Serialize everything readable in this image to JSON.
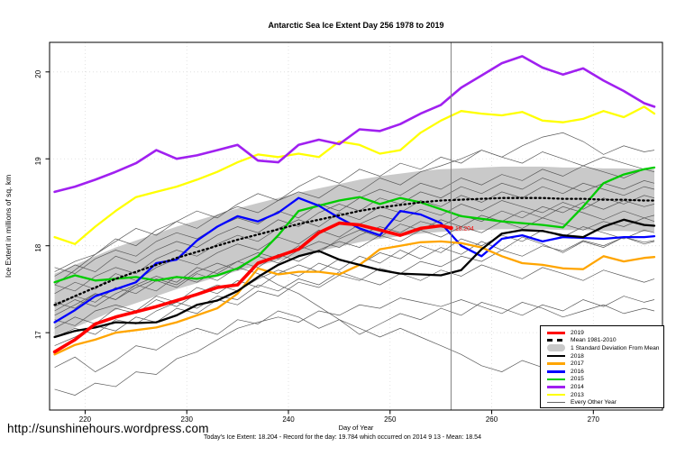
{
  "page": {
    "url_text": "http://sunshinehours.wordpress.com",
    "footer": "Today's Ice Extent: 18.204  - Record for the day: 19.784 which occurred on 2014 9 13  - Mean: 18.54"
  },
  "legend": {
    "items": [
      {
        "label": "2019",
        "color": "#FF0000",
        "style": "thick"
      },
      {
        "label": "Mean 1981-2010",
        "color": "#000000",
        "style": "dashed"
      },
      {
        "label": "1 Standard Deviation From Mean",
        "color": "#C9C9C9",
        "style": "band"
      },
      {
        "label": "2018",
        "color": "#000000",
        "style": "medium"
      },
      {
        "label": "2017",
        "color": "#FFA500",
        "style": "medium"
      },
      {
        "label": "2016",
        "color": "#0000FF",
        "style": "medium"
      },
      {
        "label": "2015",
        "color": "#00CC00",
        "style": "medium"
      },
      {
        "label": "2014",
        "color": "#A020F0",
        "style": "medium"
      },
      {
        "label": "2013",
        "color": "#FFFF00",
        "style": "medium"
      },
      {
        "label": "Every Other Year",
        "color": "#666666",
        "style": "thin"
      }
    ]
  },
  "chart_data": {
    "type": "line",
    "title": "Antarctic Sea Ice Extent Day 256 1978 to 2019",
    "xlabel": "Day of Year",
    "ylabel": "Ice Extent in millions of sq. km",
    "x_ticks": [
      220,
      230,
      240,
      250,
      260,
      270
    ],
    "y_ticks": [
      17,
      18,
      19,
      20
    ],
    "x_range": [
      216.5,
      276.8
    ],
    "y_range": [
      16.11,
      20.34
    ],
    "grid": "dotted",
    "legend_position": "bottom-right",
    "colors": {
      "grid": "#DCDCDC",
      "axis": "#000000"
    },
    "annotation": {
      "day": 256,
      "value": 18.204,
      "label": "18.204",
      "color": "#FF0000",
      "vline_color": "#808080"
    },
    "days": [
      217,
      219,
      221,
      223,
      225,
      227,
      229,
      231,
      233,
      235,
      237,
      239,
      241,
      243,
      245,
      247,
      249,
      251,
      253,
      255,
      257,
      259,
      261,
      263,
      265,
      267,
      269,
      271,
      273,
      275,
      276
    ],
    "band": {
      "name": "1 Standard Deviation From Mean",
      "color": "#C9C9C9",
      "upper": [
        17.68,
        17.78,
        17.88,
        17.98,
        18.06,
        18.14,
        18.22,
        18.29,
        18.36,
        18.43,
        18.49,
        18.55,
        18.61,
        18.66,
        18.71,
        18.76,
        18.8,
        18.83,
        18.86,
        18.88,
        18.89,
        18.9,
        18.91,
        18.91,
        18.91,
        18.9,
        18.9,
        18.89,
        18.89,
        18.88,
        18.88
      ],
      "lower": [
        16.96,
        17.06,
        17.16,
        17.26,
        17.34,
        17.42,
        17.5,
        17.57,
        17.64,
        17.71,
        17.77,
        17.83,
        17.89,
        17.94,
        17.99,
        18.04,
        18.08,
        18.11,
        18.14,
        18.16,
        18.17,
        18.18,
        18.19,
        18.19,
        18.19,
        18.18,
        18.18,
        18.17,
        18.17,
        18.16,
        18.16
      ]
    },
    "other_years": {
      "name": "Every Other Year",
      "color": "#595959",
      "width": 0.7,
      "series": [
        [
          16.35,
          16.28,
          16.42,
          16.38,
          16.55,
          16.52,
          16.7,
          16.78,
          16.92,
          17.05,
          17.12,
          17.18,
          17.12,
          17.25,
          17.2,
          17.32,
          17.28,
          17.4,
          17.35,
          17.3,
          17.38,
          17.3,
          17.22,
          17.35,
          17.28,
          17.18,
          17.25,
          17.32,
          17.22,
          17.28,
          17.25
        ],
        [
          16.6,
          16.72,
          16.55,
          16.68,
          16.85,
          16.8,
          16.95,
          17.05,
          16.98,
          17.15,
          17.1,
          17.25,
          17.18,
          17.05,
          17.15,
          16.98,
          17.1,
          17.22,
          17.15,
          17.28,
          17.2,
          17.35,
          17.28,
          17.2,
          17.32,
          17.25,
          17.38,
          17.3,
          17.42,
          17.35,
          17.38
        ],
        [
          16.95,
          17.05,
          16.98,
          17.15,
          17.1,
          17.25,
          17.35,
          17.28,
          17.42,
          17.38,
          17.55,
          17.48,
          17.62,
          17.55,
          17.7,
          17.62,
          17.55,
          17.68,
          17.6,
          17.72,
          17.65,
          17.78,
          17.7,
          17.62,
          17.75,
          17.68,
          17.6,
          17.72,
          17.65,
          17.58,
          17.62
        ],
        [
          17.05,
          17.18,
          17.1,
          17.28,
          17.22,
          17.38,
          17.3,
          17.45,
          17.55,
          17.48,
          17.62,
          17.72,
          17.65,
          17.8,
          17.72,
          17.88,
          17.8,
          17.95,
          17.85,
          17.98,
          17.9,
          18.05,
          17.95,
          18.1,
          18.02,
          17.92,
          18.05,
          17.98,
          18.1,
          18.02,
          18.05
        ],
        [
          17.15,
          17.08,
          17.25,
          17.32,
          17.25,
          17.42,
          17.35,
          17.52,
          17.45,
          17.6,
          17.52,
          17.68,
          17.78,
          17.7,
          17.85,
          17.78,
          17.92,
          17.85,
          18.0,
          17.92,
          18.08,
          18.0,
          18.12,
          18.05,
          18.18,
          18.1,
          18.22,
          18.15,
          18.08,
          18.18,
          18.15
        ],
        [
          17.25,
          17.38,
          17.3,
          17.45,
          17.55,
          17.48,
          17.65,
          17.58,
          17.72,
          17.82,
          17.75,
          17.9,
          17.82,
          17.95,
          18.05,
          17.98,
          18.12,
          18.05,
          18.18,
          18.1,
          18.22,
          18.15,
          18.28,
          18.2,
          18.32,
          18.25,
          18.18,
          18.28,
          18.22,
          18.32,
          18.28
        ],
        [
          17.35,
          17.28,
          17.45,
          17.38,
          17.55,
          17.65,
          17.58,
          17.75,
          17.68,
          17.82,
          17.92,
          17.85,
          18.0,
          17.92,
          18.08,
          18.18,
          18.1,
          18.25,
          18.18,
          18.3,
          18.22,
          18.35,
          18.28,
          18.4,
          18.32,
          18.45,
          18.38,
          18.3,
          18.4,
          18.32,
          18.35
        ],
        [
          17.45,
          17.58,
          17.5,
          17.68,
          17.6,
          17.75,
          17.85,
          17.78,
          17.92,
          18.02,
          17.95,
          18.1,
          18.02,
          18.18,
          18.1,
          18.25,
          18.35,
          18.28,
          18.42,
          18.35,
          18.48,
          18.4,
          18.52,
          18.45,
          18.38,
          18.5,
          18.42,
          18.55,
          18.48,
          18.58,
          18.55
        ],
        [
          17.55,
          17.48,
          17.65,
          17.75,
          17.68,
          17.85,
          17.95,
          17.88,
          18.02,
          18.12,
          18.05,
          18.2,
          18.3,
          18.22,
          18.38,
          18.3,
          18.45,
          18.38,
          18.52,
          18.45,
          18.58,
          18.5,
          18.62,
          18.55,
          18.68,
          18.6,
          18.72,
          18.65,
          18.58,
          18.68,
          18.65
        ],
        [
          17.65,
          17.78,
          17.7,
          17.88,
          17.8,
          17.95,
          18.05,
          17.98,
          18.12,
          18.22,
          18.15,
          18.3,
          18.22,
          18.38,
          18.48,
          18.4,
          18.55,
          18.48,
          18.62,
          18.55,
          18.68,
          18.6,
          18.72,
          18.65,
          18.78,
          18.7,
          18.62,
          18.72,
          18.65,
          18.75,
          18.72
        ],
        [
          17.75,
          17.68,
          17.85,
          17.95,
          17.88,
          18.05,
          18.15,
          18.08,
          18.22,
          18.32,
          18.25,
          18.4,
          18.32,
          18.48,
          18.4,
          18.55,
          18.65,
          18.58,
          18.72,
          18.65,
          18.78,
          18.7,
          18.82,
          18.75,
          18.88,
          18.8,
          18.92,
          18.85,
          18.78,
          18.88,
          18.85
        ],
        [
          17.7,
          17.82,
          17.9,
          18.08,
          18.0,
          18.18,
          18.28,
          18.2,
          18.35,
          18.45,
          18.38,
          18.52,
          18.62,
          18.55,
          18.7,
          18.62,
          18.78,
          18.7,
          18.85,
          18.92,
          19.0,
          19.1,
          19.02,
          19.15,
          19.25,
          19.3,
          19.2,
          19.05,
          19.15,
          19.08,
          19.1
        ],
        [
          17.55,
          17.72,
          17.9,
          18.05,
          18.2,
          18.12,
          18.28,
          18.4,
          18.32,
          18.48,
          18.6,
          18.52,
          18.68,
          18.8,
          18.72,
          18.88,
          18.8,
          18.95,
          18.88,
          19.02,
          18.95,
          19.1,
          19.02,
          18.95,
          19.08,
          19.0,
          18.92,
          19.02,
          18.95,
          18.88,
          18.9
        ],
        [
          17.3,
          17.42,
          17.35,
          17.52,
          17.45,
          17.6,
          17.52,
          17.68,
          17.6,
          17.75,
          17.68,
          17.55,
          17.45,
          17.3,
          17.15,
          17.05,
          16.95,
          17.05,
          16.95,
          16.85,
          16.75,
          16.62,
          16.55,
          16.68,
          16.6,
          16.52,
          16.65,
          16.75,
          16.85,
          16.95,
          16.9
        ],
        [
          17.2,
          17.32,
          17.45,
          17.38,
          17.52,
          17.62,
          17.55,
          17.7,
          17.8,
          17.72,
          17.88,
          17.8,
          17.95,
          18.05,
          17.98,
          18.12,
          18.22,
          18.15,
          18.28,
          18.22,
          18.35,
          18.28,
          18.4,
          18.32,
          18.45,
          18.38,
          18.5,
          18.42,
          18.52,
          18.45,
          18.48
        ],
        [
          16.85,
          16.95,
          17.08,
          17.02,
          17.18,
          17.12,
          17.28,
          17.22,
          17.38,
          17.32,
          17.48,
          17.42,
          17.58,
          17.52,
          17.66,
          17.6,
          17.74,
          17.68,
          17.82,
          17.76,
          17.88,
          17.82,
          17.95,
          17.88,
          18.0,
          17.94,
          18.06,
          18.0,
          18.1,
          18.04,
          18.06
        ]
      ]
    },
    "series": [
      {
        "name": "2013",
        "color": "#FFFF00",
        "width": 2.3,
        "values": [
          18.1,
          18.02,
          18.22,
          18.4,
          18.56,
          18.62,
          18.68,
          18.76,
          18.85,
          18.96,
          19.05,
          19.02,
          19.06,
          19.02,
          19.2,
          19.16,
          19.06,
          19.1,
          19.3,
          19.44,
          19.55,
          19.52,
          19.5,
          19.54,
          19.44,
          19.42,
          19.46,
          19.55,
          19.48,
          19.6,
          19.52
        ]
      },
      {
        "name": "2014",
        "color": "#A020F0",
        "width": 2.6,
        "values": [
          18.62,
          18.68,
          18.76,
          18.85,
          18.95,
          19.1,
          19.0,
          19.04,
          19.1,
          19.16,
          18.98,
          18.96,
          19.16,
          19.22,
          19.17,
          19.34,
          19.32,
          19.4,
          19.52,
          19.62,
          19.82,
          19.96,
          20.1,
          20.18,
          20.05,
          19.97,
          20.04,
          19.9,
          19.78,
          19.64,
          19.6
        ]
      },
      {
        "name": "2015",
        "color": "#00CC00",
        "width": 2.3,
        "values": [
          17.58,
          17.66,
          17.6,
          17.62,
          17.64,
          17.6,
          17.64,
          17.62,
          17.66,
          17.74,
          17.88,
          18.12,
          18.4,
          18.46,
          18.52,
          18.56,
          18.48,
          18.55,
          18.5,
          18.42,
          18.34,
          18.31,
          18.28,
          18.26,
          18.24,
          18.21,
          18.45,
          18.72,
          18.82,
          18.88,
          18.9
        ]
      },
      {
        "name": "2016",
        "color": "#0000FF",
        "width": 2.3,
        "values": [
          17.12,
          17.26,
          17.42,
          17.5,
          17.58,
          17.8,
          17.84,
          18.06,
          18.22,
          18.34,
          18.28,
          18.38,
          18.55,
          18.46,
          18.32,
          18.2,
          18.12,
          18.4,
          18.36,
          18.26,
          18.0,
          17.88,
          18.08,
          18.12,
          18.05,
          18.1,
          18.09,
          18.08,
          18.1,
          18.1,
          18.11
        ]
      },
      {
        "name": "2017",
        "color": "#FFA500",
        "width": 2.3,
        "values": [
          16.75,
          16.86,
          16.92,
          17.0,
          17.03,
          17.06,
          17.12,
          17.2,
          17.28,
          17.45,
          17.74,
          17.67,
          17.7,
          17.7,
          17.67,
          17.78,
          17.96,
          18.0,
          18.04,
          18.05,
          18.03,
          17.98,
          17.88,
          17.8,
          17.78,
          17.74,
          17.73,
          17.88,
          17.82,
          17.86,
          17.87
        ]
      },
      {
        "name": "2018",
        "color": "#000000",
        "width": 2.3,
        "values": [
          16.95,
          17.02,
          17.06,
          17.12,
          17.11,
          17.12,
          17.2,
          17.32,
          17.37,
          17.48,
          17.64,
          17.78,
          17.88,
          17.94,
          17.84,
          17.78,
          17.72,
          17.68,
          17.67,
          17.66,
          17.72,
          17.96,
          18.14,
          18.18,
          18.17,
          18.12,
          18.1,
          18.22,
          18.3,
          18.24,
          18.23
        ]
      },
      {
        "name": "Mean 1981-2010",
        "color": "#000000",
        "width": 2.3,
        "dash": "1.5 3.5",
        "values": [
          17.32,
          17.42,
          17.52,
          17.62,
          17.7,
          17.78,
          17.86,
          17.93,
          18.0,
          18.07,
          18.13,
          18.19,
          18.25,
          18.3,
          18.35,
          18.4,
          18.44,
          18.47,
          18.5,
          18.52,
          18.53,
          18.54,
          18.55,
          18.55,
          18.55,
          18.54,
          18.54,
          18.53,
          18.53,
          18.52,
          18.52
        ]
      },
      {
        "name": "2019",
        "color": "#FF0000",
        "width": 3.6,
        "x": [
          217,
          219,
          221,
          223,
          225,
          227,
          229,
          231,
          233,
          235,
          237,
          239,
          241,
          243,
          245,
          247,
          249,
          251,
          253,
          255,
          256
        ],
        "values": [
          16.78,
          16.92,
          17.1,
          17.18,
          17.24,
          17.3,
          17.37,
          17.44,
          17.52,
          17.55,
          17.8,
          17.88,
          17.96,
          18.15,
          18.26,
          18.24,
          18.18,
          18.12,
          18.2,
          18.23,
          18.204
        ]
      }
    ]
  }
}
